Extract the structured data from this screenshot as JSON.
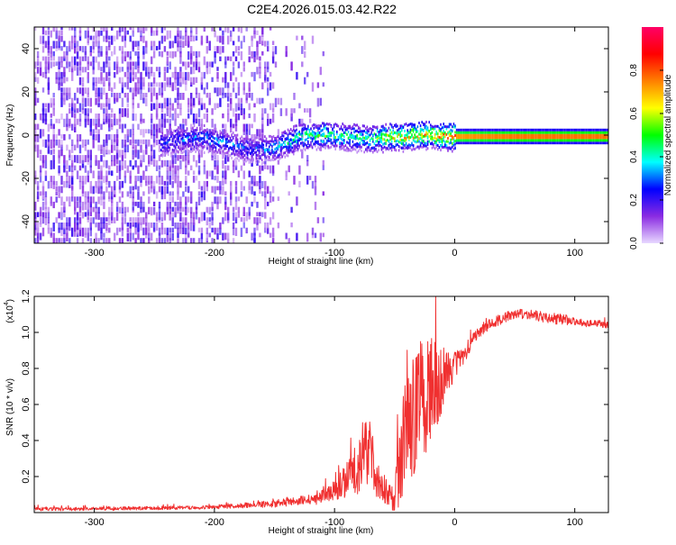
{
  "chart_data": [
    {
      "type": "heatmap",
      "title": "C2E4.2026.015.03.42.R22",
      "xlabel": "Height of straight line (km)",
      "ylabel": "Frequency (Hz)",
      "xlim": [
        -350,
        128
      ],
      "ylim": [
        -50,
        50
      ],
      "xticks": [
        -300,
        -200,
        -100,
        0,
        100
      ],
      "yticks": [
        -40,
        -20,
        0,
        20,
        40
      ],
      "colorbar": {
        "label": "Normalized spectral amplitude",
        "range": [
          0,
          1
        ],
        "ticks": [
          "0.0",
          "0.2",
          "0.4",
          "0.6",
          "0.8"
        ],
        "tick_values": [
          0.0,
          0.2,
          0.4,
          0.6,
          0.8
        ],
        "colors": [
          "#e8d8ff",
          "#8a2be2",
          "#0000ff",
          "#00ffff",
          "#00ff00",
          "#ffff00",
          "#ff8000",
          "#ff0000",
          "#ff0066"
        ]
      },
      "signal_track": {
        "x": [
          -245,
          -215,
          -190,
          -170,
          -150,
          -130,
          -110,
          -90,
          -70,
          -55,
          -40,
          -25,
          -10,
          0,
          50,
          128
        ],
        "frequency": [
          -3,
          0,
          -3,
          -6,
          -5,
          0,
          1,
          0,
          -1,
          0,
          0,
          1,
          0,
          0,
          0,
          0
        ],
        "amplitude": [
          0.3,
          0.35,
          0.35,
          0.3,
          0.4,
          0.5,
          0.55,
          0.5,
          0.5,
          0.7,
          0.75,
          0.75,
          0.8,
          0.85,
          0.9,
          0.9
        ]
      }
    },
    {
      "type": "line",
      "xlabel": "Height of straight line (km)",
      "ylabel": "SNR (10 * v/v)",
      "exponent_label": "(x10",
      "exponent": "4",
      "exponent_close": ")",
      "xlim": [
        -350,
        128
      ],
      "ylim": [
        0,
        1.2
      ],
      "xticks": [
        -300,
        -200,
        -100,
        0,
        100
      ],
      "yticks": [
        "0.2",
        "0.4",
        "0.6",
        "0.8",
        "1.0",
        "1.2"
      ],
      "ytick_values": [
        0.2,
        0.4,
        0.6,
        0.8,
        1.0,
        1.2
      ],
      "color": "#f03030",
      "series": [
        {
          "name": "SNR",
          "x": [
            -350,
            -300,
            -250,
            -200,
            -150,
            -120,
            -100,
            -90,
            -80,
            -75,
            -70,
            -65,
            -60,
            -55,
            -50,
            -45,
            -40,
            -35,
            -30,
            -25,
            -20,
            -15,
            -10,
            -5,
            0,
            10,
            20,
            30,
            40,
            50,
            60,
            70,
            80,
            90,
            100,
            110,
            120,
            128
          ],
          "values": [
            0.02,
            0.02,
            0.025,
            0.03,
            0.05,
            0.07,
            0.12,
            0.18,
            0.25,
            0.35,
            0.3,
            0.22,
            0.15,
            0.1,
            0.08,
            0.3,
            0.45,
            0.55,
            0.6,
            0.65,
            0.68,
            0.72,
            0.75,
            0.78,
            0.82,
            0.9,
            1.0,
            1.05,
            1.08,
            1.1,
            1.1,
            1.09,
            1.08,
            1.07,
            1.06,
            1.05,
            1.05,
            1.04
          ],
          "noise_amplitude": [
            0.01,
            0.01,
            0.01,
            0.01,
            0.02,
            0.03,
            0.06,
            0.1,
            0.15,
            0.18,
            0.2,
            0.15,
            0.1,
            0.06,
            0.1,
            0.25,
            0.35,
            0.35,
            0.35,
            0.35,
            0.3,
            0.25,
            0.18,
            0.12,
            0.08,
            0.05,
            0.03,
            0.03,
            0.03,
            0.03,
            0.03,
            0.03,
            0.03,
            0.03,
            0.02,
            0.02,
            0.02,
            0.02
          ]
        }
      ]
    }
  ]
}
